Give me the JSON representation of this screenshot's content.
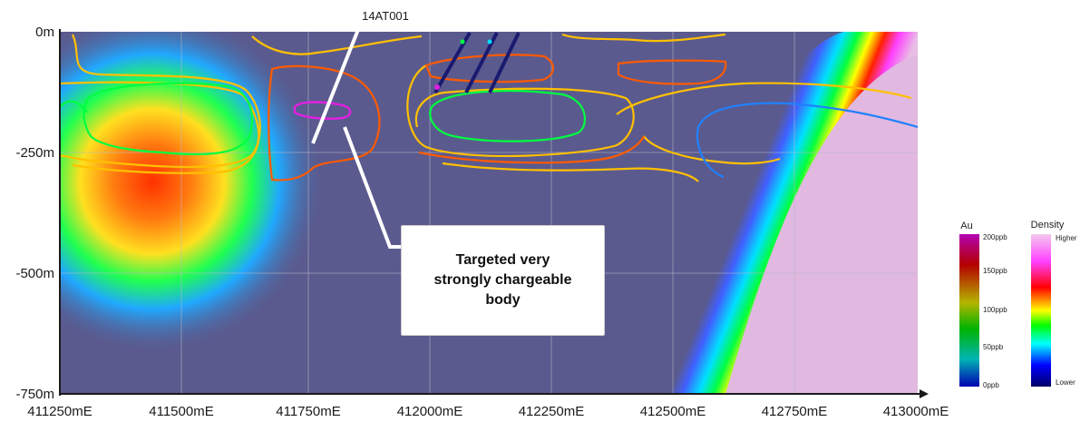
{
  "section": {
    "depth_labels": [
      "0m",
      "-250m",
      "-500m",
      "-750m"
    ],
    "easting_labels": [
      "411250mE",
      "411500mE",
      "411750mE",
      "412000mE",
      "412250mE",
      "412500mE",
      "412750mE",
      "413000mE"
    ],
    "drillhole_label": "14AT001",
    "callout_lines": [
      "Targeted very",
      "strongly chargeable",
      "body"
    ]
  },
  "legend_au": {
    "title": "Au",
    "ticks": [
      "200ppb",
      "150ppb",
      "100ppb",
      "50ppb",
      "0ppb"
    ],
    "colors": [
      "#b400b4",
      "#b40000",
      "#b4b400",
      "#00b400",
      "#00b4b4",
      "#0000b4"
    ]
  },
  "legend_density": {
    "title": "Density",
    "top_label": "Higher",
    "bottom_label": "Lower",
    "colors": [
      "#f4c8ee",
      "#ff40ff",
      "#ff0000",
      "#ffff00",
      "#00ff00",
      "#00ffff",
      "#0000ff",
      "#000066"
    ]
  },
  "colors": {
    "background": "#5a5a8e",
    "contour_yellow": "#ffc000",
    "contour_orange": "#ff5a00",
    "contour_green": "#00ff40",
    "contour_blue": "#2080ff",
    "contour_magenta": "#e020e0",
    "drillhole": "#ffffff"
  }
}
